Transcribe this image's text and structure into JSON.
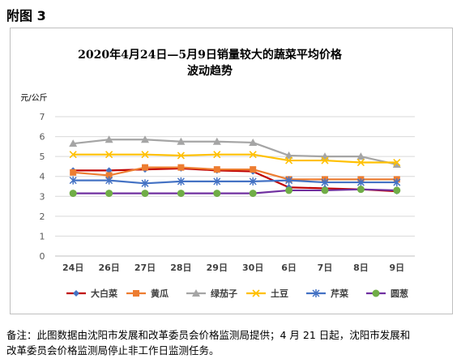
{
  "page": {
    "heading": "附图 3",
    "note_line1": "备注：此图数据由沈阳市发展和改革委员会价格监测局提供；4 月 21 日起，沈阳市发展和",
    "note_line2": "改革委员会价格监测局停止非工作日监测任务。"
  },
  "chart_data": {
    "type": "line",
    "title_line1": "2020年4月24日—5月9日销量较大的蔬菜平均价格",
    "title_line2": "波动趋势",
    "ylabel": "元/公斤",
    "xlabel": "",
    "categories": [
      "24日",
      "26日",
      "27日",
      "28日",
      "29日",
      "30日",
      "6日",
      "7日",
      "8日",
      "9日"
    ],
    "ylim": [
      0,
      7
    ],
    "yticks": [
      0,
      1,
      2,
      3,
      4,
      5,
      6,
      7
    ],
    "grid": true,
    "legend_position": "bottom",
    "series": [
      {
        "name": "大白菜",
        "color": "#c00000",
        "marker": "diamond",
        "marker_color": "#4472c4",
        "values": [
          4.3,
          4.3,
          4.35,
          4.4,
          4.3,
          4.25,
          3.45,
          3.4,
          3.35,
          3.25
        ]
      },
      {
        "name": "黄瓜",
        "color": "#ed7d31",
        "marker": "square",
        "marker_color": "#ed7d31",
        "values": [
          4.2,
          4.05,
          4.45,
          4.45,
          4.35,
          4.35,
          3.85,
          3.85,
          3.85,
          3.85
        ]
      },
      {
        "name": "绿茄子",
        "color": "#a5a5a5",
        "marker": "triangle",
        "marker_color": "#a5a5a5",
        "values": [
          5.65,
          5.85,
          5.85,
          5.75,
          5.75,
          5.7,
          5.05,
          5.0,
          5.0,
          4.6
        ]
      },
      {
        "name": "土豆",
        "color": "#ffc000",
        "marker": "x",
        "marker_color": "#ffc000",
        "values": [
          5.1,
          5.1,
          5.1,
          5.05,
          5.1,
          5.1,
          4.8,
          4.8,
          4.7,
          4.7
        ]
      },
      {
        "name": "芹菜",
        "color": "#4472c4",
        "marker": "star",
        "marker_color": "#4472c4",
        "values": [
          3.8,
          3.8,
          3.65,
          3.75,
          3.75,
          3.75,
          3.8,
          3.7,
          3.7,
          3.7
        ]
      },
      {
        "name": "圆葱",
        "color": "#7030a0",
        "marker": "circle",
        "marker_color": "#70ad47",
        "values": [
          3.15,
          3.15,
          3.15,
          3.15,
          3.15,
          3.15,
          3.3,
          3.3,
          3.35,
          3.3
        ]
      }
    ]
  }
}
